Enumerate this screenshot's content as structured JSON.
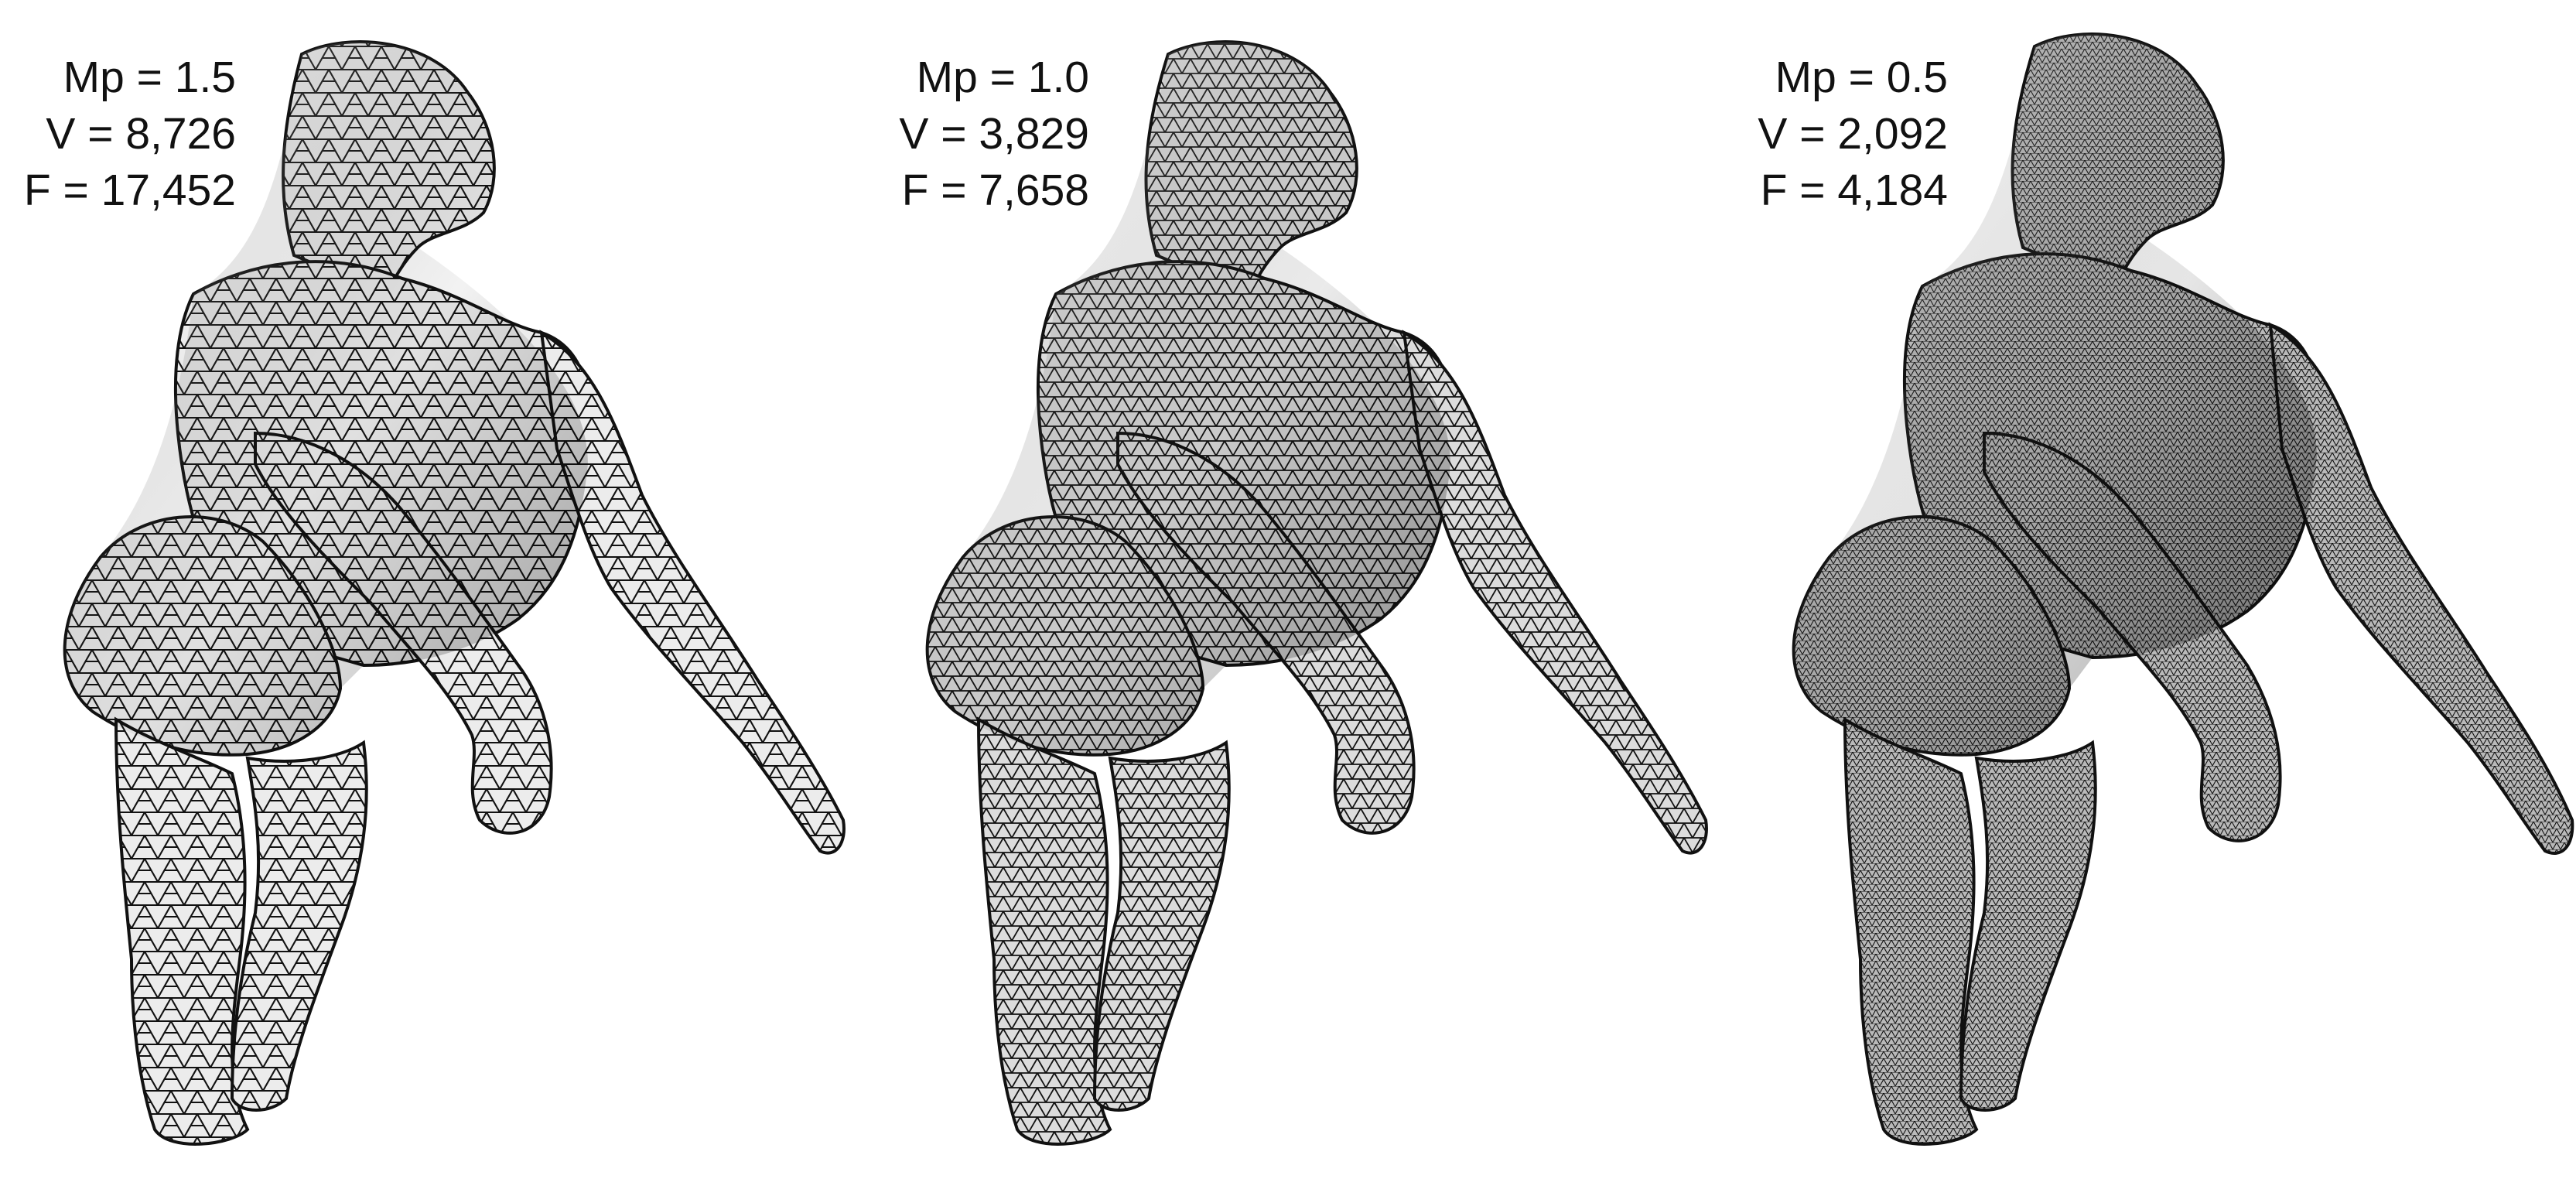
{
  "panels": [
    {
      "mp": "Mp = 1.5",
      "v": "V = 8,726",
      "f": "F = 17,452",
      "density": "coarse"
    },
    {
      "mp": "Mp = 1.0",
      "v": "V = 3,829",
      "f": "F = 7,658",
      "density": "medium"
    },
    {
      "mp": "Mp = 0.5",
      "v": "V = 2,092",
      "f": "F = 4,184",
      "density": "fine"
    }
  ],
  "colors": {
    "background": "#ffffff",
    "mesh_fill_light": "#e9e9e9",
    "mesh_fill_mid": "#c4c4c4",
    "mesh_fill_dark": "#8a8a8a",
    "mesh_edge": "#111111",
    "text": "#111111"
  }
}
